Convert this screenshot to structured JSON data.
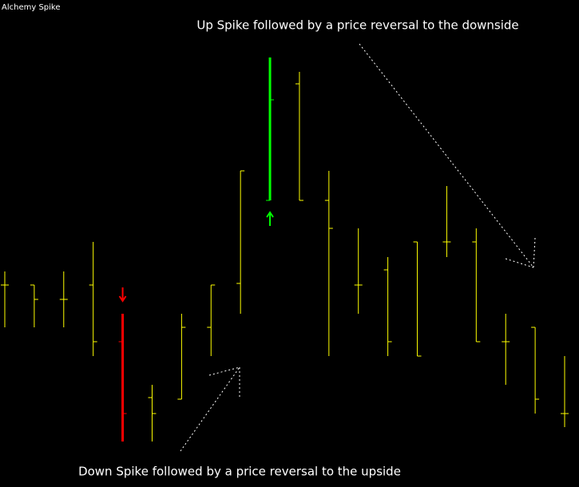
{
  "chart_data": {
    "type": "ohlc",
    "title": "Alchemy Spike",
    "annotations": [
      "Up Spike followed by a price reversal to the downside",
      "Down Spike followed by a price reversal to the upside"
    ],
    "open": [
      253,
      253,
      235,
      253,
      182,
      112,
      110,
      200,
      255,
      359,
      505,
      359,
      253,
      272,
      307,
      307,
      307,
      182,
      200,
      92
    ],
    "high": [
      270,
      253,
      270,
      307,
      217,
      128,
      217,
      253,
      396,
      538,
      520,
      396,
      324,
      288,
      307,
      377,
      324,
      217,
      200,
      164
    ],
    "low": [
      200,
      200,
      200,
      164,
      57,
      57,
      110,
      164,
      217,
      359,
      359,
      164,
      217,
      164,
      164,
      288,
      182,
      128,
      92,
      75
    ],
    "close": [
      253,
      235,
      235,
      182,
      92,
      92,
      200,
      253,
      396,
      485,
      359,
      324,
      253,
      182,
      164,
      307,
      182,
      182,
      110,
      92
    ],
    "colors": [
      "#ffff00",
      "#ffff00",
      "#ffff00",
      "#ffff00",
      "#ff0000",
      "#ffff00",
      "#ffff00",
      "#ffff00",
      "#ffff00",
      "#00ff00",
      "#ffff00",
      "#ffff00",
      "#ffff00",
      "#ffff00",
      "#ffff00",
      "#ffff00",
      "#ffff00",
      "#ffff00",
      "#ffff00",
      "#ffff00"
    ],
    "markers": [
      {
        "index": 4,
        "direction": "down",
        "color": "#ff0000"
      },
      {
        "index": 9,
        "direction": "up",
        "color": "#00ff00"
      }
    ],
    "ylim": [
      0,
      610
    ]
  }
}
